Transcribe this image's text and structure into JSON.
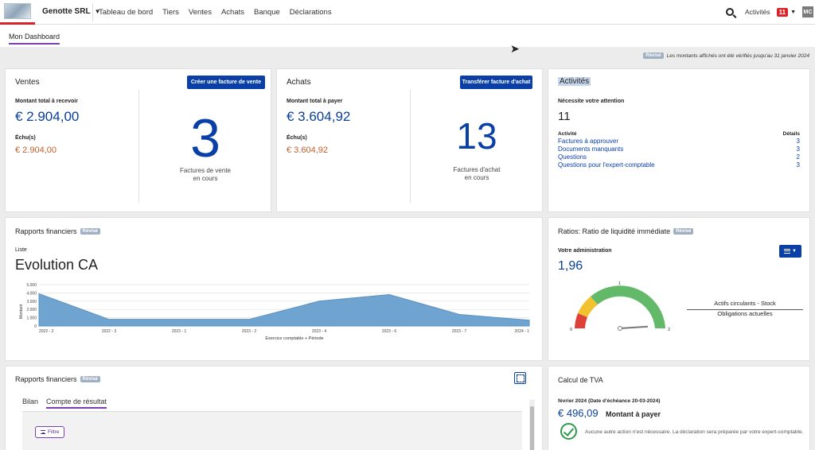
{
  "nav": {
    "company": "Genotte SRL",
    "menu": [
      "Tableau de bord",
      "Tiers",
      "Ventes",
      "Achats",
      "Banque",
      "Déclarations"
    ],
    "activities_label": "Activités",
    "activities_count": "11",
    "avatar": "MC"
  },
  "page": {
    "title": "Mon Dashboard",
    "notice_badge": "Révisé",
    "notice_text": "Les montants affichés ont été vérifiés jusqu'au 31 janvier 2024"
  },
  "ventes": {
    "title": "Ventes",
    "button": "Créer une facture de vente",
    "receivable_label": "Montant total à recevoir",
    "receivable_amount": "€ 2.904,00",
    "overdue_label": "Échu(s)",
    "overdue_amount": "€ 2.904,00",
    "count": "3",
    "count_label_1": "Factures de vente",
    "count_label_2": "en cours"
  },
  "achats": {
    "title": "Achats",
    "button": "Transférer facture d'achat",
    "payable_label": "Montant total à payer",
    "payable_amount": "€ 3.604,92",
    "overdue_label": "Échu(s)",
    "overdue_amount": "€ 3.604,92",
    "count": "13",
    "count_label_1": "Factures d'achat",
    "count_label_2": "en cours"
  },
  "activites": {
    "title": "Activités",
    "attention_label": "Nécessite votre attention",
    "attention_count": "11",
    "col_activity": "Activité",
    "col_details": "Détails",
    "rows": [
      {
        "label": "Factures à approuver",
        "value": "3"
      },
      {
        "label": "Documents manquants",
        "value": "3"
      },
      {
        "label": "Questions",
        "value": "2"
      },
      {
        "label": "Questions pour l'expert-comptable",
        "value": "3"
      }
    ]
  },
  "rapports1": {
    "title": "Rapports financiers",
    "badge": "Révisé",
    "list_label": "Liste",
    "chart_title": "Evolution CA"
  },
  "chart_data": {
    "type": "area",
    "title": "Evolution CA",
    "xlabel": "Exercice comptable + Période",
    "ylabel": "Montant",
    "categories": [
      "2022 - 2",
      "2022 - 3",
      "2023 - 1",
      "2023 - 2",
      "2023 - 4",
      "2023 - 6",
      "2023 - 7",
      "2024 - 1"
    ],
    "values": [
      3900,
      800,
      800,
      800,
      3000,
      3800,
      1400,
      700
    ],
    "ylim": [
      0,
      5000
    ],
    "yticks": [
      "0",
      "1.000",
      "2.000",
      "3.000",
      "4.000",
      "5.000"
    ],
    "color": "#6fa3d0"
  },
  "ratios": {
    "title": "Ratios: Ratio de liquidité immédiate",
    "badge": "Révisé",
    "sub_label": "Votre administration",
    "value": "1,96",
    "gauge_value": 1.96,
    "gauge_min": "0",
    "gauge_mid": "1",
    "gauge_max": "2",
    "numerator": "Actifs circulants - Stock",
    "denominator": "Obligations actuelles"
  },
  "rapports2": {
    "title": "Rapports financiers",
    "badge": "Révisé",
    "tabs": [
      "Bilan",
      "Compte de résultat"
    ],
    "filter_label": "Filtre"
  },
  "tva": {
    "title": "Calcul de TVA",
    "period": "février 2024 (Date d'échéance 20-03-2024)",
    "amount": "€ 496,09",
    "amount_label": "Montant à payer",
    "message": "Aucune autre action n'est nécessaire. La déclaration sera préparée par votre expert-comptable."
  }
}
